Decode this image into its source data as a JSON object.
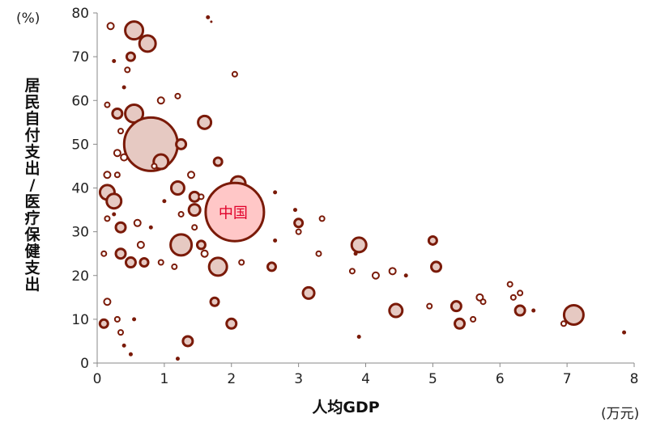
{
  "chart_data": {
    "type": "scatter",
    "title": "",
    "xlabel": "人均GDP",
    "ylabel": "居民自付支出/医疗保健支出",
    "x_unit": "(万元)",
    "y_unit": "(%)",
    "xlim": [
      0,
      8
    ],
    "ylim": [
      0,
      80
    ],
    "x_ticks": [
      "0",
      "1",
      "2",
      "3",
      "4",
      "5",
      "6",
      "7",
      "8"
    ],
    "y_ticks": [
      "0",
      "10",
      "20",
      "30",
      "40",
      "50",
      "60",
      "70",
      "80"
    ],
    "grid": false,
    "legend": "none",
    "colors": {
      "edge": "#7a1a08",
      "fill": "#e6c9c2",
      "highlight_fill": "#ffc7c7",
      "highlight_edge": "#7a1a08",
      "callout_text": "#e0002a"
    },
    "highlight": {
      "label": "中国",
      "x": 2.05,
      "y": 34.5,
      "size": 36
    },
    "points": [
      {
        "x": 0.2,
        "y": 77,
        "s": 4
      },
      {
        "x": 0.55,
        "y": 76,
        "s": 11
      },
      {
        "x": 0.75,
        "y": 73,
        "s": 10
      },
      {
        "x": 0.5,
        "y": 70,
        "s": 5
      },
      {
        "x": 0.25,
        "y": 69,
        "s": 2
      },
      {
        "x": 0.45,
        "y": 67,
        "s": 3
      },
      {
        "x": 0.4,
        "y": 63,
        "s": 2
      },
      {
        "x": 0.15,
        "y": 59,
        "s": 3
      },
      {
        "x": 0.55,
        "y": 57,
        "s": 11
      },
      {
        "x": 0.3,
        "y": 57,
        "s": 6
      },
      {
        "x": 0.95,
        "y": 60,
        "s": 4
      },
      {
        "x": 1.2,
        "y": 61,
        "s": 3
      },
      {
        "x": 0.35,
        "y": 53,
        "s": 3
      },
      {
        "x": 0.45,
        "y": 51,
        "s": 4
      },
      {
        "x": 0.6,
        "y": 51,
        "s": 3
      },
      {
        "x": 0.8,
        "y": 50,
        "s": 33
      },
      {
        "x": 1.6,
        "y": 55,
        "s": 8
      },
      {
        "x": 1.25,
        "y": 50,
        "s": 6
      },
      {
        "x": 0.3,
        "y": 48,
        "s": 4
      },
      {
        "x": 0.4,
        "y": 47,
        "s": 4
      },
      {
        "x": 0.95,
        "y": 46,
        "s": 9
      },
      {
        "x": 0.85,
        "y": 45,
        "s": 3
      },
      {
        "x": 1.8,
        "y": 46,
        "s": 5
      },
      {
        "x": 2.05,
        "y": 66,
        "s": 3
      },
      {
        "x": 0.15,
        "y": 43,
        "s": 4
      },
      {
        "x": 0.3,
        "y": 43,
        "s": 3
      },
      {
        "x": 0.15,
        "y": 39,
        "s": 9
      },
      {
        "x": 0.25,
        "y": 37,
        "s": 9
      },
      {
        "x": 1.4,
        "y": 43,
        "s": 4
      },
      {
        "x": 1.2,
        "y": 40,
        "s": 8
      },
      {
        "x": 1.45,
        "y": 38,
        "s": 6
      },
      {
        "x": 2.1,
        "y": 41,
        "s": 9
      },
      {
        "x": 1.55,
        "y": 38,
        "s": 3
      },
      {
        "x": 1.45,
        "y": 35,
        "s": 7
      },
      {
        "x": 1.25,
        "y": 34,
        "s": 3
      },
      {
        "x": 1.0,
        "y": 37,
        "s": 2
      },
      {
        "x": 0.15,
        "y": 33,
        "s": 3
      },
      {
        "x": 0.25,
        "y": 34,
        "s": 2
      },
      {
        "x": 0.35,
        "y": 31,
        "s": 6
      },
      {
        "x": 0.6,
        "y": 32,
        "s": 4
      },
      {
        "x": 0.65,
        "y": 27,
        "s": 4
      },
      {
        "x": 0.8,
        "y": 31,
        "s": 2
      },
      {
        "x": 1.25,
        "y": 27,
        "s": 13
      },
      {
        "x": 1.55,
        "y": 27,
        "s": 5
      },
      {
        "x": 1.6,
        "y": 25,
        "s": 4
      },
      {
        "x": 1.45,
        "y": 31,
        "s": 3
      },
      {
        "x": 2.65,
        "y": 39,
        "s": 2
      },
      {
        "x": 2.95,
        "y": 35,
        "s": 2
      },
      {
        "x": 3.35,
        "y": 33,
        "s": 3
      },
      {
        "x": 3.0,
        "y": 32,
        "s": 5
      },
      {
        "x": 3.0,
        "y": 30,
        "s": 3
      },
      {
        "x": 2.65,
        "y": 28,
        "s": 2
      },
      {
        "x": 0.1,
        "y": 25,
        "s": 3
      },
      {
        "x": 0.35,
        "y": 25,
        "s": 6
      },
      {
        "x": 0.5,
        "y": 23,
        "s": 6
      },
      {
        "x": 0.7,
        "y": 23,
        "s": 5
      },
      {
        "x": 0.95,
        "y": 23,
        "s": 3
      },
      {
        "x": 1.15,
        "y": 22,
        "s": 3
      },
      {
        "x": 1.8,
        "y": 22,
        "s": 11
      },
      {
        "x": 2.15,
        "y": 23,
        "s": 3
      },
      {
        "x": 2.6,
        "y": 22,
        "s": 5
      },
      {
        "x": 3.3,
        "y": 25,
        "s": 3
      },
      {
        "x": 3.9,
        "y": 27,
        "s": 9
      },
      {
        "x": 3.85,
        "y": 25,
        "s": 2
      },
      {
        "x": 3.8,
        "y": 21,
        "s": 3
      },
      {
        "x": 4.15,
        "y": 20,
        "s": 4
      },
      {
        "x": 4.4,
        "y": 21,
        "s": 4
      },
      {
        "x": 4.6,
        "y": 20,
        "s": 2
      },
      {
        "x": 5.0,
        "y": 28,
        "s": 5
      },
      {
        "x": 5.05,
        "y": 22,
        "s": 6
      },
      {
        "x": 3.15,
        "y": 16,
        "s": 7
      },
      {
        "x": 0.15,
        "y": 14,
        "s": 4
      },
      {
        "x": 0.1,
        "y": 9,
        "s": 5
      },
      {
        "x": 0.3,
        "y": 10,
        "s": 3
      },
      {
        "x": 0.35,
        "y": 7,
        "s": 3
      },
      {
        "x": 0.55,
        "y": 10,
        "s": 2
      },
      {
        "x": 1.75,
        "y": 14,
        "s": 5
      },
      {
        "x": 2.0,
        "y": 9,
        "s": 6
      },
      {
        "x": 1.35,
        "y": 5,
        "s": 6
      },
      {
        "x": 1.2,
        "y": 1,
        "s": 2
      },
      {
        "x": 0.5,
        "y": 2,
        "s": 2
      },
      {
        "x": 0.4,
        "y": 4,
        "s": 2
      },
      {
        "x": 4.45,
        "y": 12,
        "s": 8
      },
      {
        "x": 4.95,
        "y": 13,
        "s": 3
      },
      {
        "x": 5.35,
        "y": 13,
        "s": 6
      },
      {
        "x": 5.4,
        "y": 9,
        "s": 6
      },
      {
        "x": 5.6,
        "y": 10,
        "s": 3
      },
      {
        "x": 5.7,
        "y": 15,
        "s": 4
      },
      {
        "x": 5.75,
        "y": 14,
        "s": 3
      },
      {
        "x": 6.15,
        "y": 18,
        "s": 3
      },
      {
        "x": 6.2,
        "y": 15,
        "s": 3
      },
      {
        "x": 6.3,
        "y": 12,
        "s": 6
      },
      {
        "x": 6.3,
        "y": 16,
        "s": 3
      },
      {
        "x": 6.5,
        "y": 12,
        "s": 2
      },
      {
        "x": 7.1,
        "y": 11,
        "s": 12
      },
      {
        "x": 6.95,
        "y": 9,
        "s": 3
      },
      {
        "x": 7.85,
        "y": 7,
        "s": 2
      },
      {
        "x": 3.9,
        "y": 6,
        "s": 2
      },
      {
        "x": 1.65,
        "y": 79,
        "s": 2
      },
      {
        "x": 1.7,
        "y": 78,
        "s": 1
      }
    ]
  }
}
